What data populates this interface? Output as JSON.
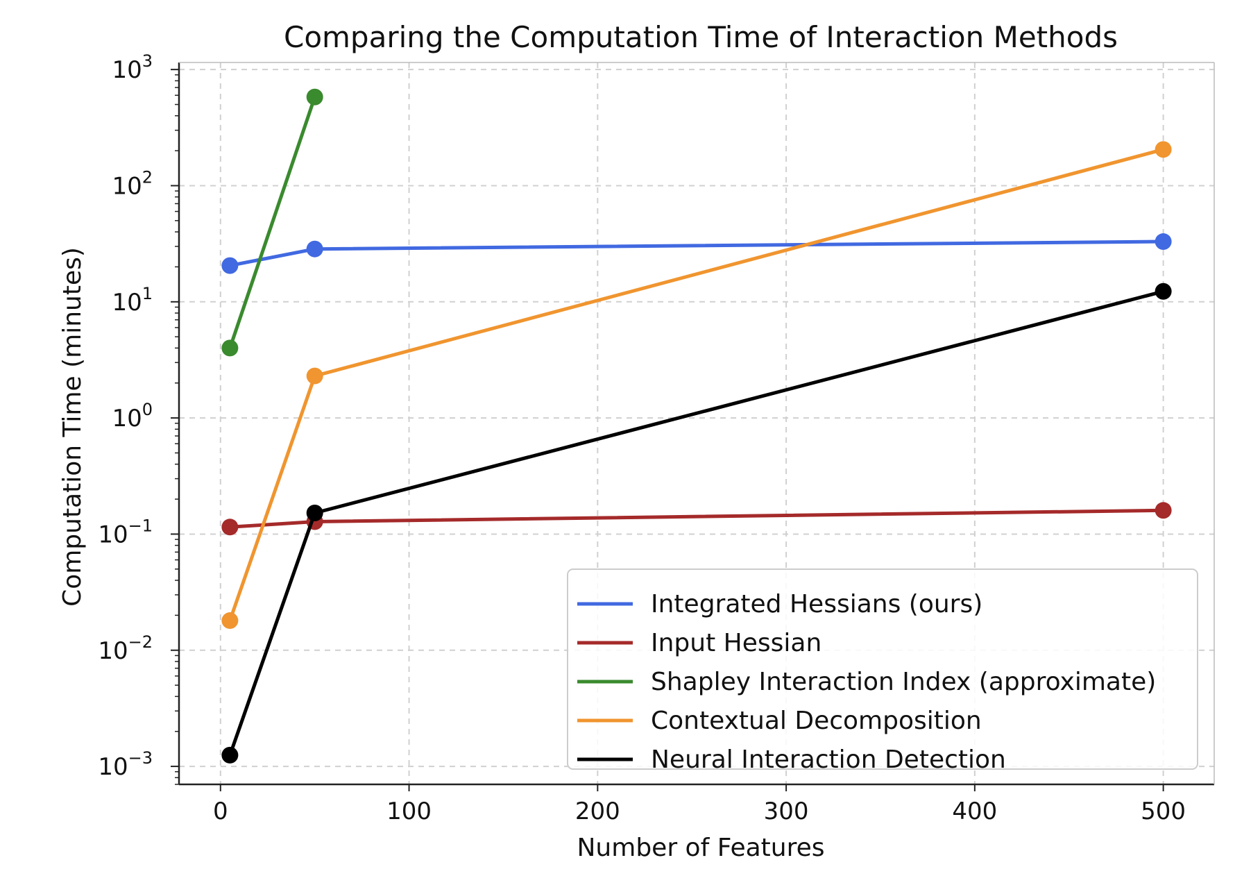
{
  "chart_data": {
    "type": "line",
    "title": "Comparing the Computation Time of Interaction Methods",
    "xlabel": "Number of Features",
    "ylabel": "Computation Time (minutes)",
    "xlim": [
      -22,
      527
    ],
    "ylim": [
      0.0007,
      1150
    ],
    "yscale": "log",
    "grid": true,
    "legend_position": "bottom-right",
    "x_ticks": [
      0,
      100,
      200,
      300,
      400,
      500
    ],
    "y_ticks": [
      {
        "value": 0.001,
        "base": "10",
        "exp": "−3"
      },
      {
        "value": 0.01,
        "base": "10",
        "exp": "−2"
      },
      {
        "value": 0.1,
        "base": "10",
        "exp": "−1"
      },
      {
        "value": 1,
        "base": "10",
        "exp": "0"
      },
      {
        "value": 10,
        "base": "10",
        "exp": "1"
      },
      {
        "value": 100,
        "base": "10",
        "exp": "2"
      },
      {
        "value": 1000,
        "base": "10",
        "exp": "3"
      }
    ],
    "series": [
      {
        "name": "Integrated Hessians (ours)",
        "color": "#4169e1",
        "x": [
          5,
          50,
          500
        ],
        "y": [
          20.5,
          28.5,
          33
        ]
      },
      {
        "name": "Input Hessian",
        "color": "#a52a2a",
        "x": [
          5,
          50,
          500
        ],
        "y": [
          0.115,
          0.128,
          0.16
        ]
      },
      {
        "name": "Shapley Interaction Index (approximate)",
        "color": "#3a8a2e",
        "x": [
          5,
          50
        ],
        "y": [
          4.0,
          580
        ]
      },
      {
        "name": "Contextual Decomposition",
        "color": "#f0952f",
        "x": [
          5,
          50,
          500
        ],
        "y": [
          0.018,
          2.3,
          205
        ]
      },
      {
        "name": "Neural Interaction Detection",
        "color": "#000000",
        "x": [
          5,
          50,
          500
        ],
        "y": [
          0.00125,
          0.152,
          12.3
        ]
      }
    ]
  }
}
